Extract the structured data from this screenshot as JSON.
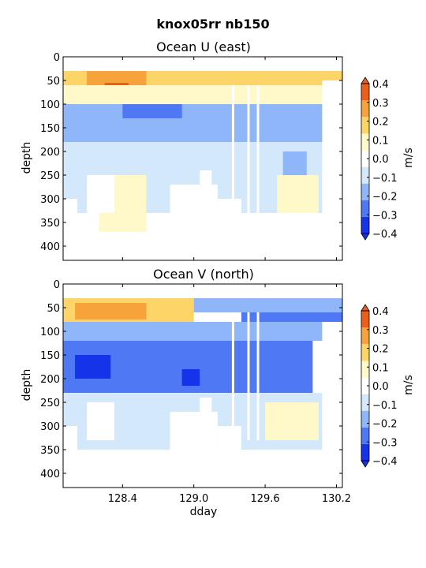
{
  "suptitle": "knox05rr nb150",
  "colors": {
    "levels": [
      "#1533e8",
      "#4f78f5",
      "#8fb6f9",
      "#d3e8fb",
      "#ffffff",
      "#fff8c8",
      "#fcd468",
      "#f5a33a",
      "#eb5e1c"
    ],
    "boundaries": [
      -0.4,
      -0.3,
      -0.2,
      -0.1,
      0.0,
      0.1,
      0.2,
      0.3,
      0.4
    ]
  },
  "chart_data": [
    {
      "type": "heatmap",
      "title": "Ocean U (east)",
      "xlabel": "",
      "ylabel": "depth",
      "x_range": [
        127.9,
        130.25
      ],
      "y_range": [
        430,
        0
      ],
      "yticks": [
        "0",
        "50",
        "100",
        "150",
        "200",
        "250",
        "300",
        "350",
        "400"
      ],
      "xticks": [],
      "colorbar": {
        "label": "m/s",
        "ticks": [
          "0.4",
          "0.3",
          "0.2",
          "0.1",
          "0.0",
          "−0.1",
          "−0.2",
          "−0.3",
          "−0.4"
        ],
        "range": [
          -0.4,
          0.4
        ]
      },
      "regions": [
        {
          "x": [
            127.9,
            130.25
          ],
          "depth": [
            30,
            60
          ],
          "v": 0.12
        },
        {
          "x": [
            128.1,
            128.6
          ],
          "depth": [
            30,
            65
          ],
          "v": 0.22
        },
        {
          "x": [
            128.25,
            128.45
          ],
          "depth": [
            55,
            95
          ],
          "v": 0.3
        },
        {
          "x": [
            129.5,
            129.9
          ],
          "depth": [
            30,
            50
          ],
          "v": 0.18
        },
        {
          "x": [
            127.9,
            130.25
          ],
          "depth": [
            60,
            100
          ],
          "v": 0.06
        },
        {
          "x": [
            127.9,
            130.25
          ],
          "depth": [
            100,
            180
          ],
          "v": -0.15
        },
        {
          "x": [
            128.4,
            128.9
          ],
          "depth": [
            100,
            130
          ],
          "v": -0.22
        },
        {
          "x": [
            127.9,
            128.6
          ],
          "depth": [
            180,
            230
          ],
          "v": 0.07
        },
        {
          "x": [
            127.9,
            128.1
          ],
          "depth": [
            210,
            240
          ],
          "v": 0.14
        },
        {
          "x": [
            127.9,
            130.1
          ],
          "depth": [
            180,
            330
          ],
          "v": -0.05
        },
        {
          "x": [
            128.2,
            128.6
          ],
          "depth": [
            250,
            370
          ],
          "v": 0.04
        },
        {
          "x": [
            129.7,
            130.05
          ],
          "depth": [
            250,
            330
          ],
          "v": 0.05
        },
        {
          "x": [
            129.75,
            129.95
          ],
          "depth": [
            200,
            250
          ],
          "v": -0.12
        }
      ],
      "blanks": [
        {
          "x": [
            128.1,
            128.33
          ],
          "depth": [
            250,
            330
          ]
        },
        {
          "x": [
            128.8,
            129.2
          ],
          "depth": [
            270,
            375
          ]
        },
        {
          "x": [
            129.2,
            129.4
          ],
          "depth": [
            300,
            390
          ]
        },
        {
          "x": [
            130.08,
            130.25
          ],
          "depth": [
            50,
            400
          ]
        },
        {
          "x": [
            127.9,
            130.25
          ],
          "depth": [
            375,
            430
          ]
        },
        {
          "x": [
            127.9,
            128.02
          ],
          "depth": [
            300,
            430
          ]
        },
        {
          "x": [
            129.05,
            129.15
          ],
          "depth": [
            240,
            280
          ]
        }
      ]
    },
    {
      "type": "heatmap",
      "title": "Ocean V (north)",
      "xlabel": "dday",
      "ylabel": "depth",
      "x_range": [
        127.9,
        130.25
      ],
      "y_range": [
        430,
        0
      ],
      "yticks": [
        "0",
        "50",
        "100",
        "150",
        "200",
        "250",
        "300",
        "350",
        "400"
      ],
      "xticks": [
        "128.4",
        "129.0",
        "129.6",
        "130.2"
      ],
      "xtick_values": [
        128.4,
        129.0,
        129.6,
        130.2
      ],
      "colorbar": {
        "label": "m/s",
        "ticks": [
          "0.4",
          "0.3",
          "0.2",
          "0.1",
          "0.0",
          "−0.1",
          "−0.2",
          "−0.3",
          "−0.4"
        ],
        "range": [
          -0.4,
          0.4
        ]
      },
      "regions": [
        {
          "x": [
            127.9,
            129.0
          ],
          "depth": [
            30,
            80
          ],
          "v": 0.12
        },
        {
          "x": [
            128.0,
            128.6
          ],
          "depth": [
            40,
            75
          ],
          "v": 0.2
        },
        {
          "x": [
            129.0,
            130.25
          ],
          "depth": [
            30,
            60
          ],
          "v": -0.12
        },
        {
          "x": [
            129.4,
            130.25
          ],
          "depth": [
            60,
            90
          ],
          "v": -0.22
        },
        {
          "x": [
            127.9,
            130.25
          ],
          "depth": [
            80,
            120
          ],
          "v": -0.1
        },
        {
          "x": [
            127.9,
            130.0
          ],
          "depth": [
            120,
            230
          ],
          "v": -0.22
        },
        {
          "x": [
            128.0,
            128.3
          ],
          "depth": [
            150,
            200
          ],
          "v": -0.3
        },
        {
          "x": [
            128.9,
            129.05
          ],
          "depth": [
            180,
            215
          ],
          "v": -0.34
        },
        {
          "x": [
            127.9,
            130.1
          ],
          "depth": [
            230,
            350
          ],
          "v": -0.06
        },
        {
          "x": [
            129.6,
            130.05
          ],
          "depth": [
            250,
            330
          ],
          "v": 0.05
        }
      ],
      "blanks": [
        {
          "x": [
            128.1,
            128.33
          ],
          "depth": [
            250,
            330
          ]
        },
        {
          "x": [
            128.8,
            129.2
          ],
          "depth": [
            270,
            375
          ]
        },
        {
          "x": [
            129.2,
            129.4
          ],
          "depth": [
            300,
            390
          ]
        },
        {
          "x": [
            130.08,
            130.25
          ],
          "depth": [
            80,
            400
          ]
        },
        {
          "x": [
            127.9,
            130.25
          ],
          "depth": [
            375,
            430
          ]
        },
        {
          "x": [
            127.9,
            128.02
          ],
          "depth": [
            300,
            430
          ]
        },
        {
          "x": [
            129.05,
            129.15
          ],
          "depth": [
            240,
            280
          ]
        }
      ]
    }
  ]
}
